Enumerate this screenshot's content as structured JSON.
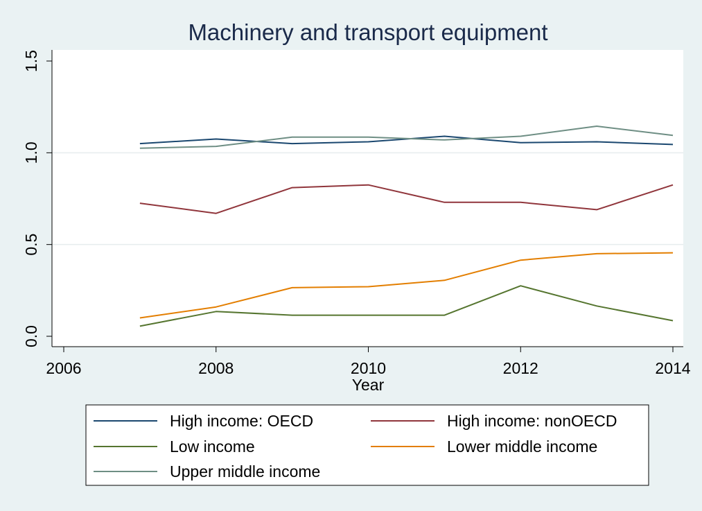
{
  "chart_data": {
    "type": "line",
    "title": "Machinery and transport equipment",
    "xlabel": "Year",
    "ylabel": "",
    "xlim": [
      2006,
      2014
    ],
    "ylim": [
      0,
      1.5
    ],
    "xticks": [
      {
        "value": 2006,
        "label": "2006"
      },
      {
        "value": 2008,
        "label": "2008"
      },
      {
        "value": 2010,
        "label": "2010"
      },
      {
        "value": 2012,
        "label": "2012"
      },
      {
        "value": 2014,
        "label": "2014"
      }
    ],
    "yticks": [
      {
        "value": 0,
        "label": "0.0"
      },
      {
        "value": 0.5,
        "label": "0.5"
      },
      {
        "value": 1.0,
        "label": "1.0"
      },
      {
        "value": 1.5,
        "label": "1.5"
      }
    ],
    "grid": "horizontal",
    "legend_position": "bottom",
    "x": [
      2007,
      2008,
      2009,
      2010,
      2011,
      2012,
      2013,
      2014
    ],
    "series": [
      {
        "name": "High income: OECD",
        "color": "#1a476f",
        "values": [
          1.05,
          1.075,
          1.05,
          1.06,
          1.09,
          1.055,
          1.06,
          1.045
        ]
      },
      {
        "name": "High income: nonOECD",
        "color": "#90353b",
        "values": [
          0.725,
          0.67,
          0.81,
          0.825,
          0.73,
          0.73,
          0.69,
          0.825
        ]
      },
      {
        "name": "Low income",
        "color": "#55752f",
        "values": [
          0.055,
          0.135,
          0.115,
          0.115,
          0.115,
          0.275,
          0.165,
          0.085
        ]
      },
      {
        "name": "Lower middle income",
        "color": "#e37e00",
        "values": [
          0.1,
          0.16,
          0.265,
          0.27,
          0.305,
          0.415,
          0.45,
          0.455
        ]
      },
      {
        "name": "Upper middle income",
        "color": "#6e8e84",
        "values": [
          1.025,
          1.035,
          1.085,
          1.085,
          1.07,
          1.09,
          1.145,
          1.095
        ]
      }
    ]
  }
}
